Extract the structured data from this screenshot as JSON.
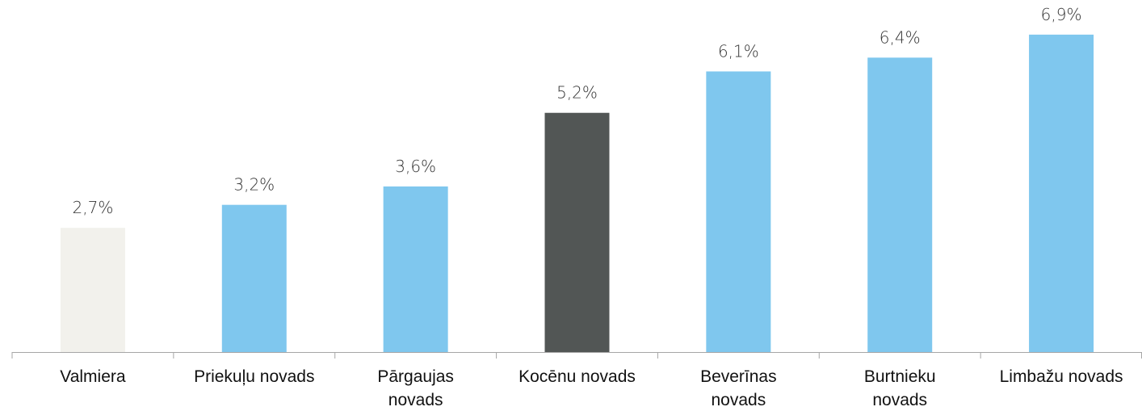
{
  "chart_data": {
    "type": "bar",
    "categories": [
      "Valmiera",
      "Priekuļu novads",
      "Pārgaujas novads",
      "Kocēnu novads",
      "Beverīnas novads",
      "Burtnieku novads",
      "Limbažu novads"
    ],
    "values": [
      2.7,
      3.2,
      3.6,
      5.2,
      6.1,
      6.4,
      6.9
    ],
    "value_labels": [
      "2,7%",
      "3,2%",
      "3,6%",
      "5,2%",
      "6,1%",
      "6,4%",
      "6,9%"
    ],
    "colors": [
      "#f2f1ec",
      "#7fc7ee",
      "#7fc7ee",
      "#525655",
      "#7fc7ee",
      "#7fc7ee",
      "#7fc7ee"
    ],
    "ylim": [
      0,
      7.6
    ]
  }
}
